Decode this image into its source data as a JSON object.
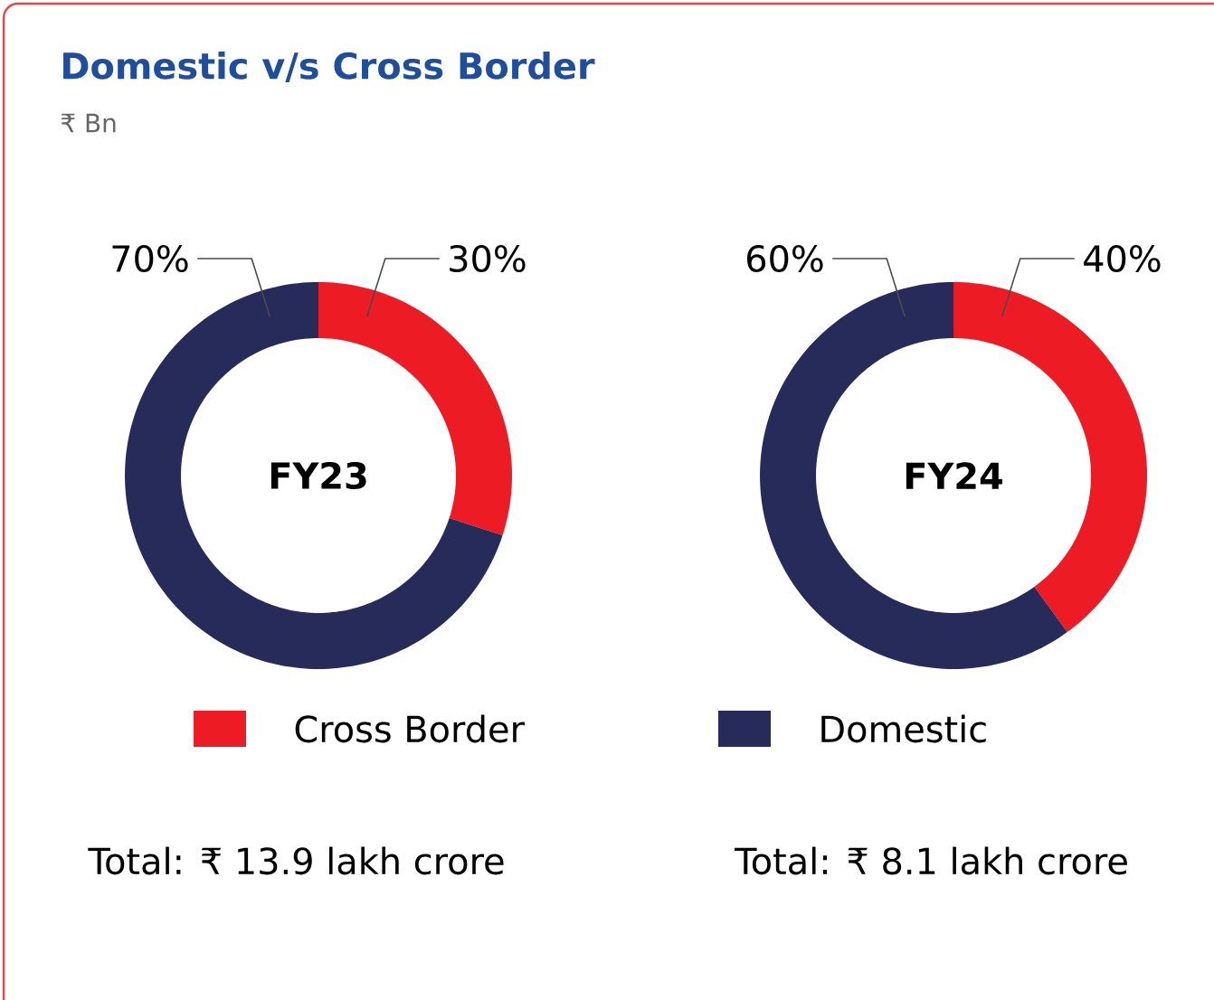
{
  "chart_data": {
    "type": "donut",
    "title": "Domestic v/s Cross Border",
    "subtitle": "₹ Bn",
    "categories": [
      "Cross Border",
      "Domestic"
    ],
    "colors": [
      "#ed1c24",
      "#262b5a"
    ],
    "legend": "bottom",
    "series": [
      {
        "name": "FY23",
        "values": [
          30,
          70
        ],
        "value_labels": [
          "30%",
          "70%"
        ]
      },
      {
        "name": "FY24",
        "values": [
          40,
          60
        ],
        "value_labels": [
          "40%",
          "60%"
        ]
      }
    ],
    "annotations": [
      "Total: ₹ 13.9 lakh crore",
      "Total: ₹ 8.1 lakh crore"
    ]
  }
}
